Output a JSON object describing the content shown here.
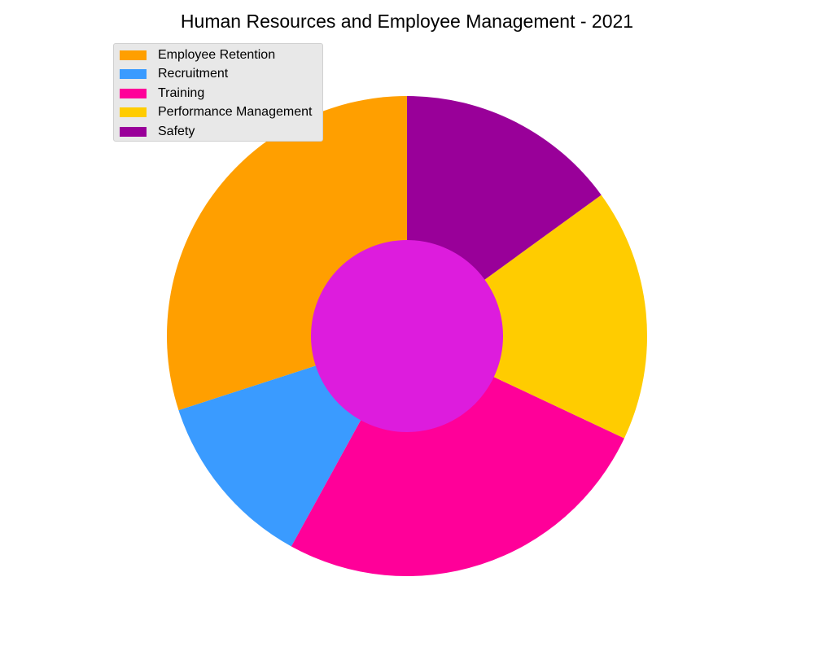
{
  "chart_data": {
    "type": "pie",
    "style": "donut",
    "title": "Human Resources and Employee Management - 2021",
    "categories": [
      "Employee Retention",
      "Recruitment",
      "Training",
      "Performance Management",
      "Safety"
    ],
    "values": [
      30,
      12,
      26,
      17,
      15
    ],
    "unit": "%",
    "colors": [
      "#ff9f00",
      "#3a9bff",
      "#ff0099",
      "#ffcc00",
      "#990099"
    ],
    "center_color": "#dd1cdd",
    "start_angle_deg": 90,
    "direction": "counterclockwise",
    "legend": {
      "position": "upper-left",
      "entries": [
        "Employee Retention",
        "Recruitment",
        "Training",
        "Performance Management",
        "Safety"
      ]
    },
    "grid": false
  }
}
